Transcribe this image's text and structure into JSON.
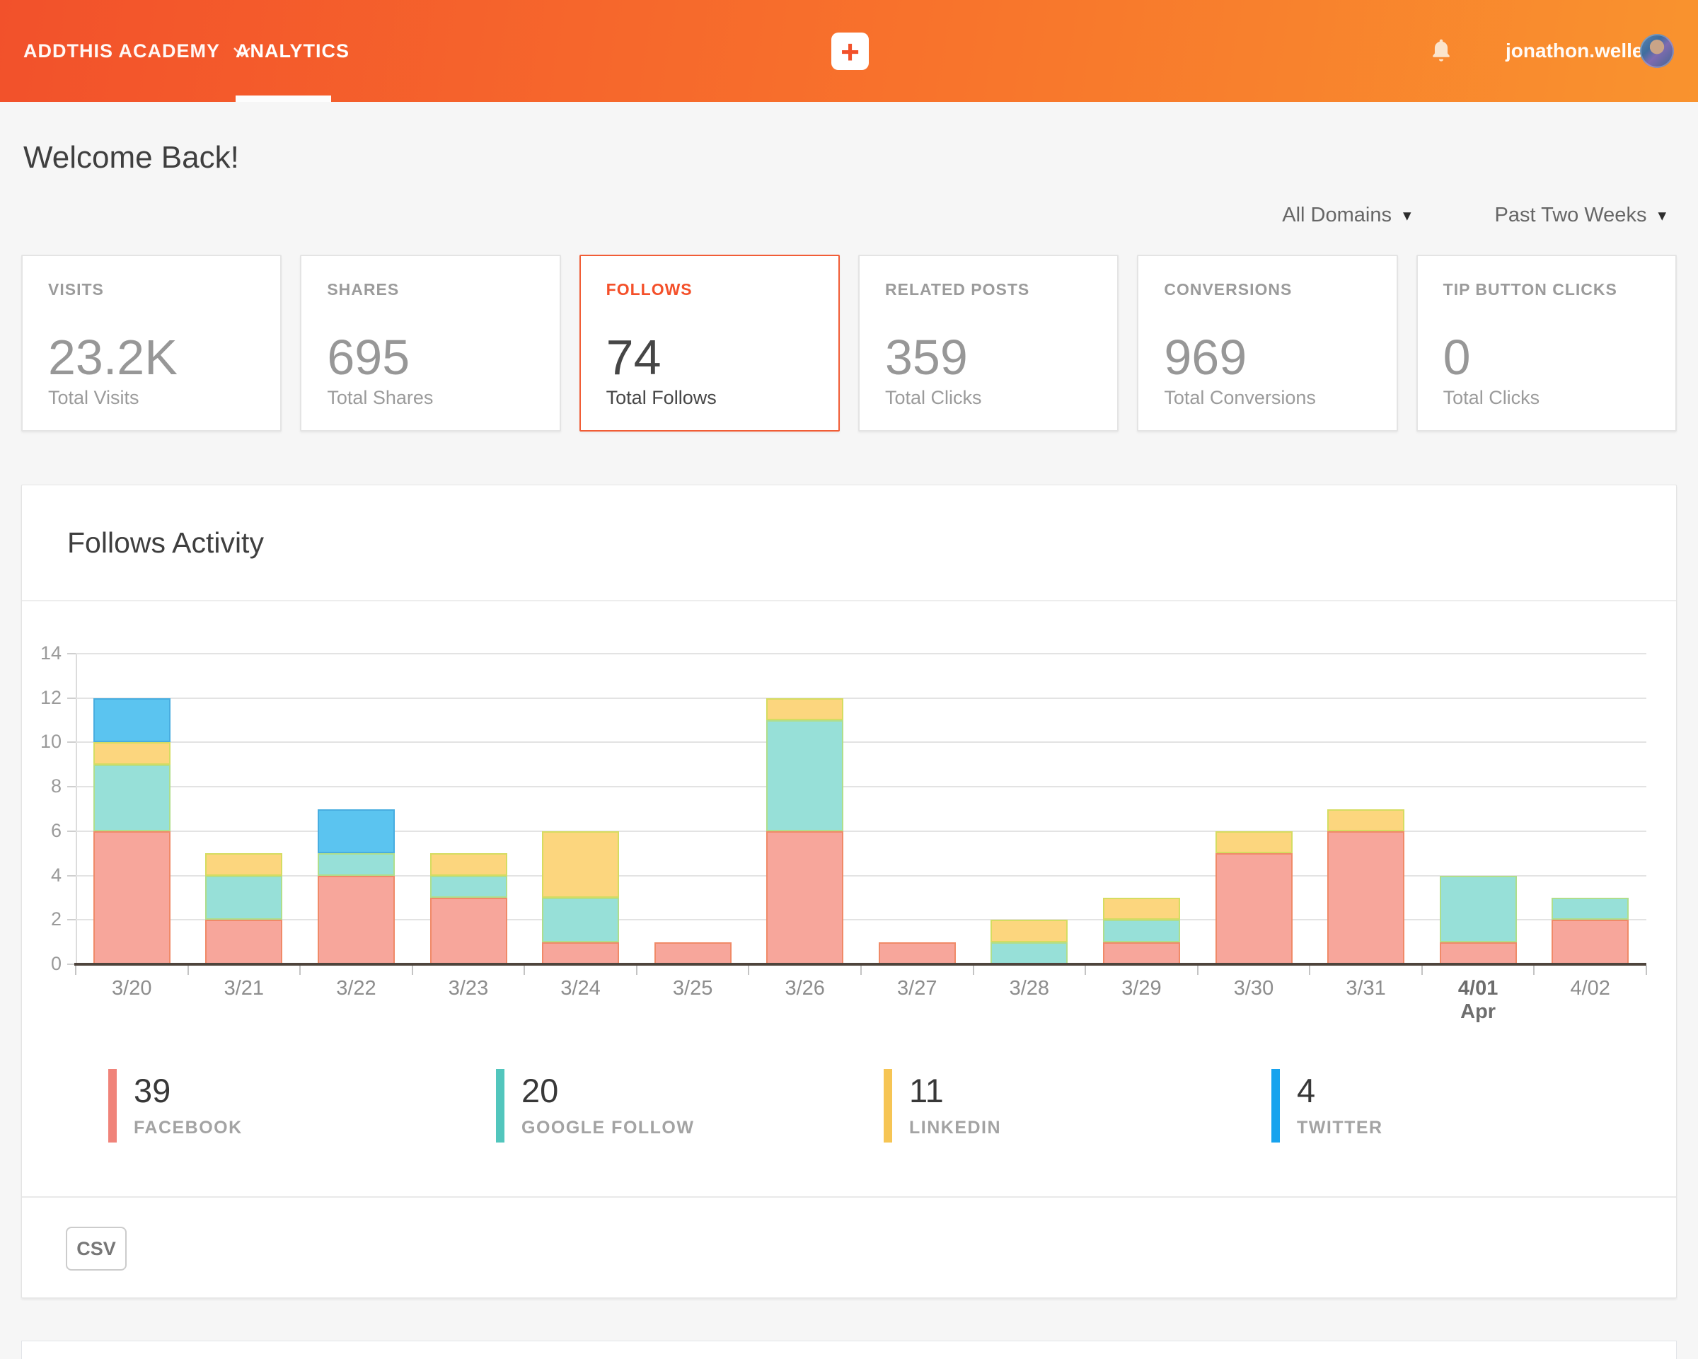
{
  "header": {
    "brand": "ADDTHIS ACADEMY",
    "nav_analytics": "ANALYTICS",
    "plus_label": "+",
    "username": "jonathon.weller",
    "icons": {
      "brand_caret": "chevron-down-icon",
      "bell": "bell-icon",
      "avatar": "user-avatar"
    }
  },
  "page": {
    "title": "Welcome Back!",
    "domain_filter": "All Domains",
    "range_filter": "Past Two Weeks",
    "caret_glyph": "▾"
  },
  "stats": [
    {
      "label": "VISITS",
      "value": "23.2K",
      "caption": "Total Visits",
      "active": false
    },
    {
      "label": "SHARES",
      "value": "695",
      "caption": "Total Shares",
      "active": false
    },
    {
      "label": "FOLLOWS",
      "value": "74",
      "caption": "Total Follows",
      "active": true
    },
    {
      "label": "RELATED POSTS",
      "value": "359",
      "caption": "Total Clicks",
      "active": false
    },
    {
      "label": "CONVERSIONS",
      "value": "969",
      "caption": "Total Conversions",
      "active": false
    },
    {
      "label": "TIP BUTTON CLICKS",
      "value": "0",
      "caption": "Total Clicks",
      "active": false
    }
  ],
  "panel": {
    "title": "Follows Activity",
    "csv_label": "CSV"
  },
  "colors": {
    "accent": "#F2512B",
    "header_gradient": [
      "#F2512B",
      "#F9932E"
    ],
    "page_background": "#F6F6F6"
  },
  "chart_data": {
    "type": "bar",
    "stacked": true,
    "title": "Follows Activity",
    "categories": [
      "3/20",
      "3/21",
      "3/22",
      "3/23",
      "3/24",
      "3/25",
      "3/26",
      "3/27",
      "3/28",
      "3/29",
      "3/30",
      "3/31",
      "4/01",
      "4/02"
    ],
    "emphasized_category": "4/01",
    "emphasized_sublabel": "Apr",
    "series": [
      {
        "name": "FACEBOOK",
        "total": 39,
        "color": "#F0837A",
        "fill": "#F7A69B",
        "border": "#F08A68",
        "values": [
          6,
          2,
          4,
          3,
          1,
          1,
          6,
          1,
          0,
          1,
          5,
          6,
          1,
          2
        ]
      },
      {
        "name": "GOOGLE FOLLOW",
        "total": 20,
        "color": "#52C6BD",
        "fill": "#97E0D8",
        "border": "#AFDE8C",
        "values": [
          3,
          2,
          1,
          1,
          2,
          0,
          5,
          0,
          1,
          1,
          0,
          0,
          3,
          1
        ]
      },
      {
        "name": "LINKEDIN",
        "total": 11,
        "color": "#F6C554",
        "fill": "#FCD67E",
        "border": "#D5DC61",
        "values": [
          1,
          1,
          0,
          1,
          3,
          0,
          1,
          0,
          1,
          1,
          1,
          1,
          0,
          0
        ]
      },
      {
        "name": "TWITTER",
        "total": 4,
        "color": "#17A3EE",
        "fill": "#5BC4F0",
        "border": "#48ADE0",
        "values": [
          2,
          0,
          2,
          0,
          0,
          0,
          0,
          0,
          0,
          0,
          0,
          0,
          0,
          0
        ]
      }
    ],
    "ylim": [
      0,
      14
    ],
    "yticks": [
      0,
      2,
      4,
      6,
      8,
      10,
      12,
      14
    ],
    "grid": true,
    "legend_position": "bottom"
  }
}
